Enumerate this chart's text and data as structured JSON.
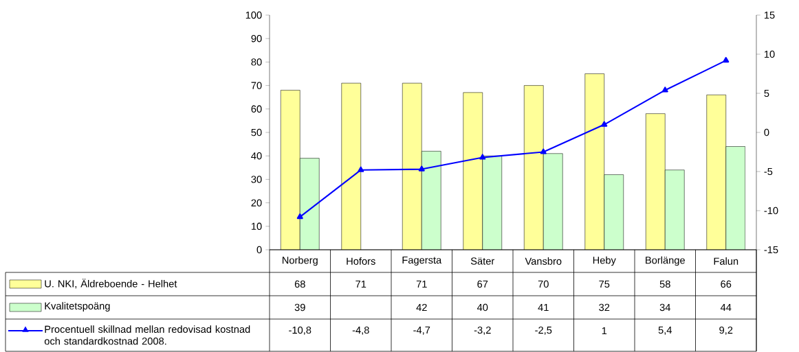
{
  "chart_data": {
    "type": "bar",
    "categories": [
      "Norberg",
      "Hofors",
      "Fagersta",
      "Säter",
      "Vansbro",
      "Heby",
      "Borlänge",
      "Falun"
    ],
    "series": [
      {
        "name": "U. NKI, Äldreboende -  Helhet",
        "color": "#ffff99",
        "values": [
          68,
          71,
          71,
          67,
          70,
          75,
          58,
          66
        ],
        "value_labels": [
          "68",
          "71",
          "71",
          "67",
          "70",
          "75",
          "58",
          "66"
        ]
      },
      {
        "name": "Kvalitetspoäng",
        "color": "#ccffcc",
        "values": [
          39,
          null,
          42,
          40,
          41,
          32,
          34,
          44
        ],
        "value_labels": [
          "39",
          null,
          "42",
          "40",
          "41",
          "32",
          "34",
          "44"
        ]
      },
      {
        "name": "Procentuell skillnad mellan redovisad kostnad och standardkostnad 2008.",
        "type": "line",
        "axis": "y2",
        "color": "#0000ff",
        "marker": "triangle",
        "values": [
          -10.8,
          -4.8,
          -4.7,
          -3.2,
          -2.5,
          1,
          5.4,
          9.2
        ],
        "value_labels": [
          "-10,8",
          "-4,8",
          "-4,7",
          "-3,2",
          "-2,5",
          "1",
          "5,4",
          "9,2"
        ]
      }
    ],
    "ylim": [
      0,
      100
    ],
    "yticks": [
      0,
      10,
      20,
      30,
      40,
      50,
      60,
      70,
      80,
      90,
      100
    ],
    "y2lim": [
      -15,
      15
    ],
    "y2ticks": [
      -15,
      -10,
      -5,
      0,
      5,
      10,
      15
    ],
    "legend": "bottom"
  }
}
